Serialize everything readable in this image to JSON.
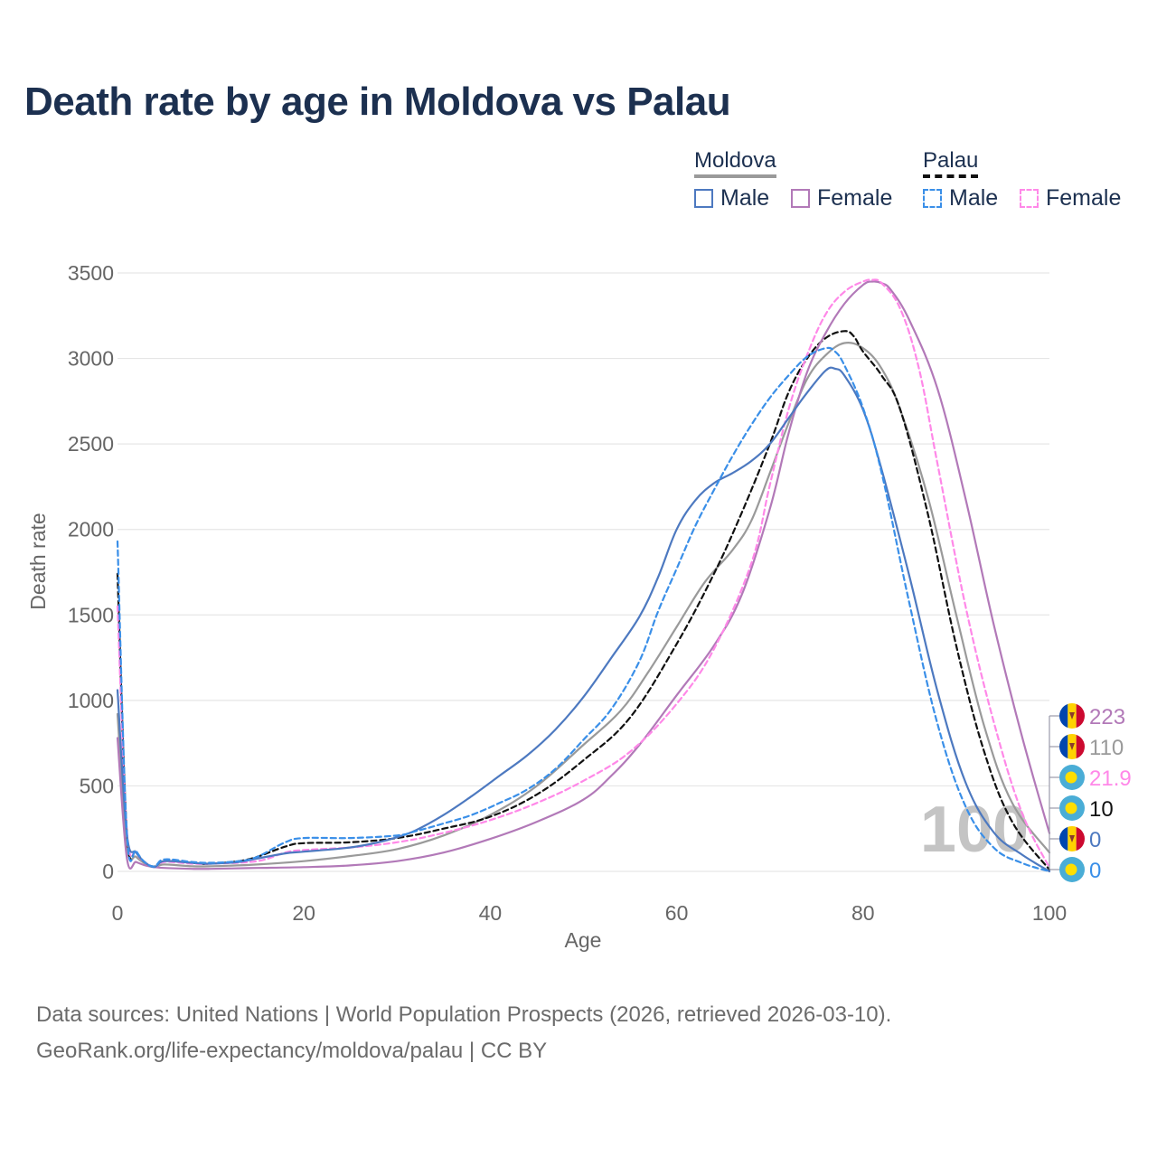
{
  "title": "Death rate by age in Moldova vs Palau",
  "legend": {
    "groups": [
      {
        "name": "Moldova",
        "line_style": "solid",
        "line_color": "#9a9a9a",
        "items": [
          {
            "label": "Male",
            "color": "#4d79c0",
            "style": "solid"
          },
          {
            "label": "Female",
            "color": "#b279b8",
            "style": "solid"
          }
        ]
      },
      {
        "name": "Palau",
        "line_style": "dashed",
        "line_color": "#111111",
        "items": [
          {
            "label": "Male",
            "color": "#3a8fe8",
            "style": "dashed"
          },
          {
            "label": "Female",
            "color": "#ff88e8",
            "style": "dashed"
          }
        ]
      }
    ]
  },
  "watermark": "100",
  "end_labels": [
    {
      "value": "223",
      "color": "#b279b8",
      "flag": "moldova-flag-icon"
    },
    {
      "value": "110",
      "color": "#9a9a9a",
      "flag": "moldova-flag-icon"
    },
    {
      "value": "21.9",
      "color": "#ff88e8",
      "flag": "palau-flag-icon"
    },
    {
      "value": "10",
      "color": "#111111",
      "flag": "palau-flag-icon"
    },
    {
      "value": "0",
      "color": "#4d79c0",
      "flag": "moldova-flag-icon"
    },
    {
      "value": "0",
      "color": "#3a8fe8",
      "flag": "palau-flag-icon"
    }
  ],
  "source_lines": [
    "Data sources: United Nations | World Population Prospects (2026, retrieved 2026-03-10).",
    "GeoRank.org/life-expectancy/moldova/palau | CC BY"
  ],
  "chart_data": {
    "type": "line",
    "title": "Death rate by age in Moldova vs Palau",
    "xlabel": "Age",
    "ylabel": "Death rate",
    "xlim": [
      0,
      100
    ],
    "ylim": [
      0,
      3500
    ],
    "xticks": [
      0,
      20,
      40,
      60,
      80,
      100
    ],
    "yticks": [
      0,
      500,
      1000,
      1500,
      2000,
      2500,
      3000,
      3500
    ],
    "grid": true,
    "series": [
      {
        "name": "Moldova Male",
        "color": "#4d79c0",
        "dash": "solid",
        "points": [
          [
            0,
            1060
          ],
          [
            1,
            220
          ],
          [
            2,
            110
          ],
          [
            3,
            50
          ],
          [
            4,
            25
          ],
          [
            5,
            60
          ],
          [
            8,
            50
          ],
          [
            10,
            45
          ],
          [
            13,
            55
          ],
          [
            15,
            75
          ],
          [
            18,
            105
          ],
          [
            20,
            115
          ],
          [
            25,
            140
          ],
          [
            28,
            170
          ],
          [
            30,
            200
          ],
          [
            32,
            240
          ],
          [
            35,
            330
          ],
          [
            38,
            440
          ],
          [
            41,
            560
          ],
          [
            44,
            680
          ],
          [
            47,
            830
          ],
          [
            50,
            1020
          ],
          [
            53,
            1250
          ],
          [
            56,
            1490
          ],
          [
            58,
            1720
          ],
          [
            60,
            2000
          ],
          [
            62,
            2170
          ],
          [
            64,
            2270
          ],
          [
            66,
            2330
          ],
          [
            68,
            2400
          ],
          [
            70,
            2500
          ],
          [
            72,
            2650
          ],
          [
            74,
            2800
          ],
          [
            76,
            2930
          ],
          [
            77,
            2940
          ],
          [
            78,
            2900
          ],
          [
            80,
            2700
          ],
          [
            82,
            2350
          ],
          [
            85,
            1720
          ],
          [
            88,
            1050
          ],
          [
            91,
            520
          ],
          [
            94,
            230
          ],
          [
            97,
            100
          ],
          [
            100,
            0
          ]
        ]
      },
      {
        "name": "Moldova Female",
        "color": "#b279b8",
        "dash": "solid",
        "points": [
          [
            0,
            780
          ],
          [
            1,
            80
          ],
          [
            2,
            55
          ],
          [
            3,
            35
          ],
          [
            4,
            25
          ],
          [
            5,
            20
          ],
          [
            8,
            15
          ],
          [
            10,
            15
          ],
          [
            15,
            20
          ],
          [
            20,
            25
          ],
          [
            25,
            35
          ],
          [
            30,
            60
          ],
          [
            35,
            110
          ],
          [
            40,
            190
          ],
          [
            45,
            290
          ],
          [
            50,
            420
          ],
          [
            53,
            560
          ],
          [
            56,
            740
          ],
          [
            60,
            1030
          ],
          [
            64,
            1320
          ],
          [
            67,
            1620
          ],
          [
            70,
            2120
          ],
          [
            72,
            2560
          ],
          [
            74,
            2920
          ],
          [
            76,
            3150
          ],
          [
            78,
            3320
          ],
          [
            80,
            3430
          ],
          [
            81,
            3450
          ],
          [
            82,
            3440
          ],
          [
            83,
            3400
          ],
          [
            85,
            3220
          ],
          [
            88,
            2820
          ],
          [
            91,
            2180
          ],
          [
            94,
            1450
          ],
          [
            97,
            800
          ],
          [
            100,
            223
          ]
        ]
      },
      {
        "name": "Moldova Total",
        "color": "#9a9a9a",
        "dash": "solid",
        "points": [
          [
            0,
            920
          ],
          [
            1,
            150
          ],
          [
            2,
            85
          ],
          [
            3,
            45
          ],
          [
            4,
            25
          ],
          [
            5,
            40
          ],
          [
            8,
            30
          ],
          [
            10,
            30
          ],
          [
            15,
            40
          ],
          [
            20,
            60
          ],
          [
            25,
            90
          ],
          [
            30,
            130
          ],
          [
            35,
            210
          ],
          [
            40,
            330
          ],
          [
            45,
            500
          ],
          [
            50,
            740
          ],
          [
            54,
            940
          ],
          [
            57,
            1170
          ],
          [
            60,
            1430
          ],
          [
            63,
            1690
          ],
          [
            66,
            1880
          ],
          [
            68,
            2050
          ],
          [
            70,
            2330
          ],
          [
            72,
            2620
          ],
          [
            74,
            2880
          ],
          [
            76,
            3020
          ],
          [
            78,
            3090
          ],
          [
            80,
            3060
          ],
          [
            82,
            2940
          ],
          [
            84,
            2700
          ],
          [
            87,
            2180
          ],
          [
            90,
            1500
          ],
          [
            93,
            850
          ],
          [
            96,
            400
          ],
          [
            100,
            110
          ]
        ]
      },
      {
        "name": "Palau Male",
        "color": "#3a8fe8",
        "dash": "dashed",
        "points": [
          [
            0,
            1930
          ],
          [
            1,
            230
          ],
          [
            2,
            120
          ],
          [
            3,
            50
          ],
          [
            4,
            30
          ],
          [
            5,
            70
          ],
          [
            8,
            55
          ],
          [
            10,
            50
          ],
          [
            13,
            60
          ],
          [
            15,
            85
          ],
          [
            18,
            170
          ],
          [
            20,
            195
          ],
          [
            25,
            195
          ],
          [
            30,
            210
          ],
          [
            32,
            235
          ],
          [
            35,
            280
          ],
          [
            38,
            330
          ],
          [
            41,
            400
          ],
          [
            44,
            480
          ],
          [
            47,
            600
          ],
          [
            50,
            770
          ],
          [
            53,
            950
          ],
          [
            56,
            1230
          ],
          [
            58,
            1520
          ],
          [
            60,
            1770
          ],
          [
            62,
            2020
          ],
          [
            64,
            2230
          ],
          [
            66,
            2430
          ],
          [
            68,
            2610
          ],
          [
            70,
            2770
          ],
          [
            72,
            2900
          ],
          [
            74,
            3010
          ],
          [
            76,
            3060
          ],
          [
            77,
            3040
          ],
          [
            78,
            2960
          ],
          [
            80,
            2710
          ],
          [
            82,
            2330
          ],
          [
            85,
            1560
          ],
          [
            88,
            860
          ],
          [
            91,
            380
          ],
          [
            94,
            140
          ],
          [
            97,
            50
          ],
          [
            100,
            0
          ]
        ]
      },
      {
        "name": "Palau Female",
        "color": "#ff88e8",
        "dash": "dashed",
        "points": [
          [
            0,
            1550
          ],
          [
            1,
            240
          ],
          [
            2,
            110
          ],
          [
            3,
            50
          ],
          [
            4,
            25
          ],
          [
            5,
            55
          ],
          [
            8,
            45
          ],
          [
            10,
            45
          ],
          [
            15,
            60
          ],
          [
            18,
            110
          ],
          [
            20,
            125
          ],
          [
            25,
            140
          ],
          [
            30,
            170
          ],
          [
            35,
            225
          ],
          [
            40,
            300
          ],
          [
            45,
            400
          ],
          [
            50,
            530
          ],
          [
            55,
            700
          ],
          [
            60,
            980
          ],
          [
            64,
            1300
          ],
          [
            68,
            1800
          ],
          [
            70,
            2260
          ],
          [
            72,
            2700
          ],
          [
            74,
            3020
          ],
          [
            76,
            3260
          ],
          [
            78,
            3390
          ],
          [
            80,
            3450
          ],
          [
            81,
            3460
          ],
          [
            82,
            3440
          ],
          [
            84,
            3290
          ],
          [
            86,
            2940
          ],
          [
            88,
            2380
          ],
          [
            91,
            1550
          ],
          [
            94,
            880
          ],
          [
            97,
            350
          ],
          [
            100,
            21.9
          ]
        ]
      },
      {
        "name": "Palau Total",
        "color": "#111111",
        "dash": "dashed",
        "points": [
          [
            0,
            1740
          ],
          [
            1,
            230
          ],
          [
            2,
            115
          ],
          [
            3,
            50
          ],
          [
            4,
            28
          ],
          [
            5,
            60
          ],
          [
            8,
            50
          ],
          [
            10,
            45
          ],
          [
            14,
            70
          ],
          [
            18,
            145
          ],
          [
            20,
            165
          ],
          [
            25,
            170
          ],
          [
            30,
            195
          ],
          [
            35,
            250
          ],
          [
            40,
            320
          ],
          [
            45,
            450
          ],
          [
            50,
            650
          ],
          [
            55,
            900
          ],
          [
            60,
            1330
          ],
          [
            64,
            1740
          ],
          [
            67,
            2100
          ],
          [
            70,
            2500
          ],
          [
            72,
            2800
          ],
          [
            74,
            3000
          ],
          [
            76,
            3120
          ],
          [
            78,
            3160
          ],
          [
            79,
            3130
          ],
          [
            80,
            3040
          ],
          [
            82,
            2900
          ],
          [
            84,
            2700
          ],
          [
            87,
            2080
          ],
          [
            90,
            1320
          ],
          [
            93,
            700
          ],
          [
            96,
            290
          ],
          [
            100,
            10
          ]
        ]
      }
    ]
  }
}
